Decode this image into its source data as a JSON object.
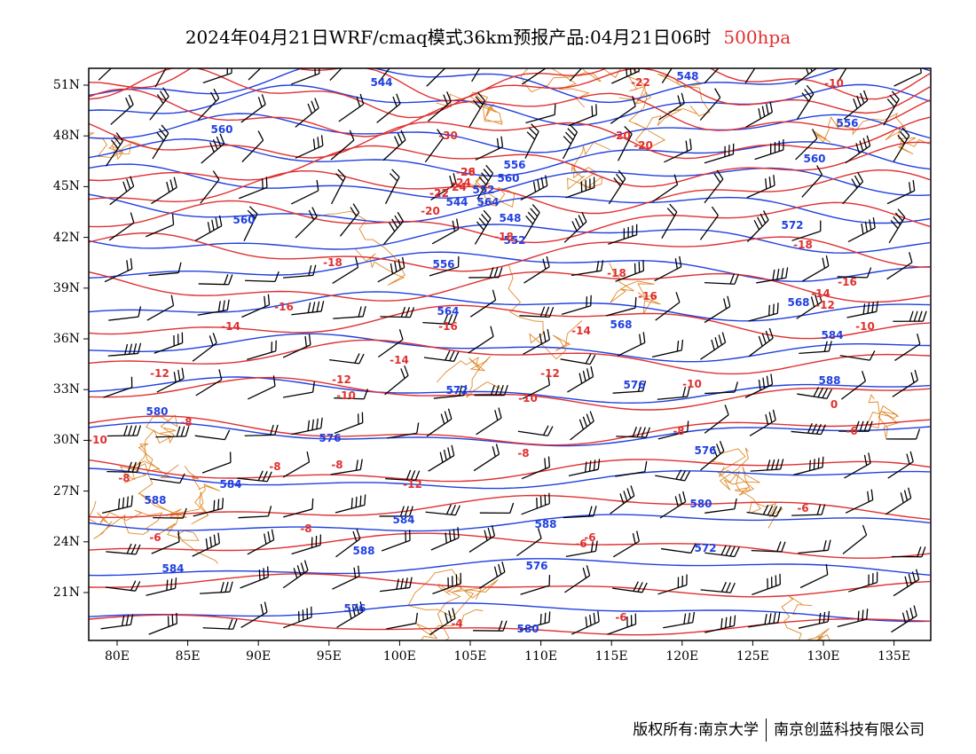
{
  "title": {
    "main": "2024年04月21日WRF/cmaq模式36km预报产品:04月21日06时",
    "level": "500hpa"
  },
  "colors": {
    "height": "#2040e0",
    "temperature": "#e03030",
    "boundary": "#e08a2a",
    "wind": "#000000"
  },
  "lat_labels": [
    "51N",
    "48N",
    "45N",
    "42N",
    "39N",
    "36N",
    "33N",
    "30N",
    "27N",
    "24N",
    "21N"
  ],
  "lon_labels": [
    "80E",
    "85E",
    "90E",
    "95E",
    "100E",
    "105E",
    "110E",
    "115E",
    "120E",
    "125E",
    "130E",
    "135E"
  ],
  "height_labels": [
    "544",
    "548",
    "556",
    "560",
    "564",
    "548",
    "544",
    "552",
    "556",
    "560",
    "564",
    "568",
    "572",
    "576",
    "576",
    "572",
    "580",
    "584",
    "584",
    "588",
    "588",
    "588",
    "576",
    "580",
    "584",
    "572",
    "576",
    "576",
    "580",
    "584",
    "588",
    "556",
    "552",
    "560",
    "568",
    "560"
  ],
  "temp_labels": [
    "-30",
    "-26",
    "-24",
    "-22",
    "-20",
    "-20",
    "-18",
    "-18",
    "-18",
    "-16",
    "-16",
    "-16",
    "-14",
    "-14",
    "-14",
    "-12",
    "-12",
    "-12",
    "-10",
    "-10",
    "-10",
    "-8",
    "-8",
    "-8",
    "-6",
    "-6",
    "-6",
    "-4",
    "-22",
    "-20",
    "-24",
    "-22",
    "-28",
    "-16",
    "-14",
    "-12",
    "-10",
    "-18",
    "-10",
    "-8",
    "-8",
    "-8",
    "-12",
    "-10",
    "-6",
    "-6",
    "0",
    "-8",
    "-6"
  ],
  "footer": {
    "left": "版权所有:南京大学",
    "right": "南京创蓝科技有限公司"
  }
}
